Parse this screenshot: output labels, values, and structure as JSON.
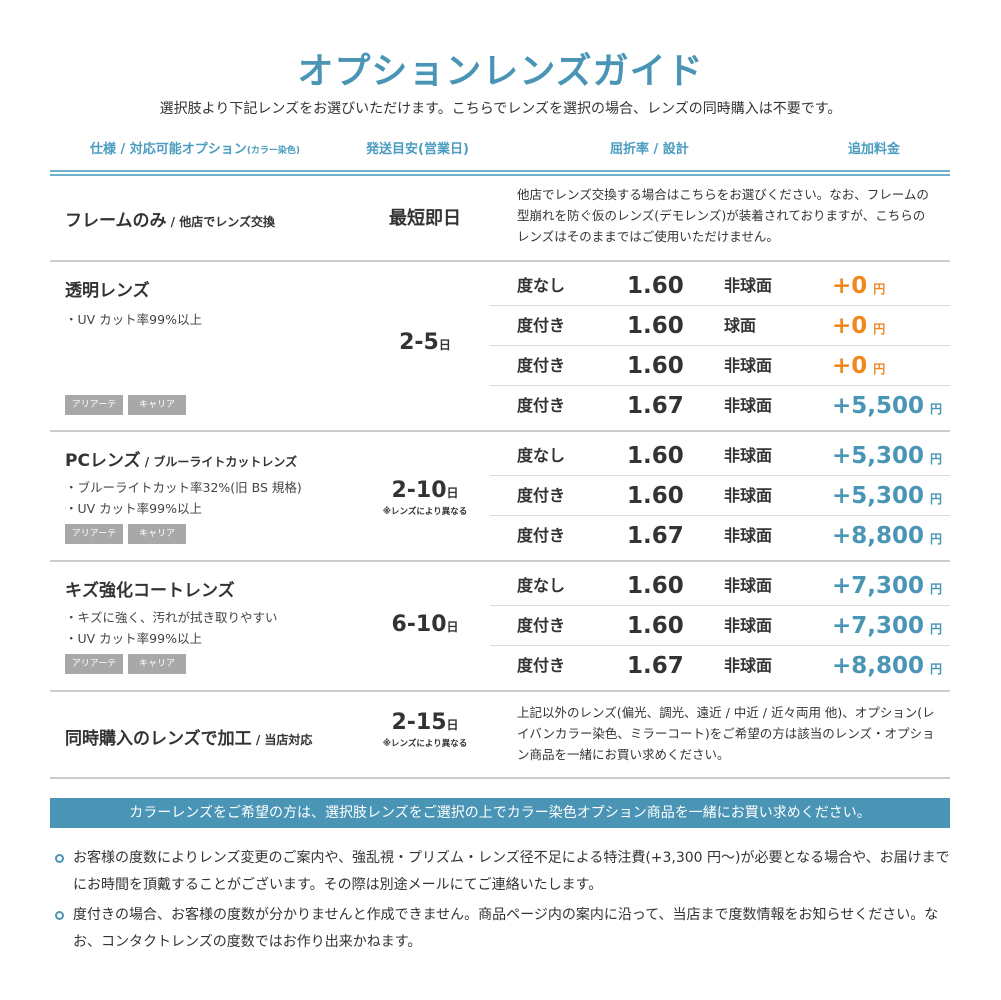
{
  "title": "オプションレンズガイド",
  "subtitle": "選択肢より下記レンズをお選びいただけます。こちらでレンズを選択の場合、レンズの同時購入は不要です。",
  "headers": {
    "spec": "仕様 / 対応可能オプション",
    "spec_small": "(カラー染色)",
    "ship": "発送目安(営業日)",
    "index": "屈折率 / 設計",
    "price": "追加料金"
  },
  "colors": {
    "accent": "#4a95b5",
    "zero_price": "#f0881e",
    "price": "#4a95b5",
    "tag": "#a8a8a8"
  },
  "frame": {
    "name": "フレームのみ",
    "sub": " / 他店でレンズ交換",
    "ship": "最短即日",
    "desc": "他店でレンズ交換する場合はこちらをお選びください。なお、フレームの型崩れを防ぐ仮のレンズ(デモレンズ)が装着されておりますが、こちらのレンズはそのままではご使用いただけません。"
  },
  "sections": [
    {
      "name": "透明レンズ",
      "sub": "",
      "bullets": [
        "・UV カット率99%以上"
      ],
      "tags": [
        "アリアーテ",
        "キャリア"
      ],
      "ship": "2-5",
      "ship_unit": "日",
      "ship_note": "",
      "rows": [
        {
          "label": "度なし",
          "index": "1.60",
          "design": "非球面",
          "price": "+0",
          "unit": "円",
          "zero": true
        },
        {
          "label": "度付き",
          "index": "1.60",
          "design": "球面",
          "price": "+0",
          "unit": "円",
          "zero": true
        },
        {
          "label": "度付き",
          "index": "1.60",
          "design": "非球面",
          "price": "+0",
          "unit": "円",
          "zero": true
        },
        {
          "label": "度付き",
          "index": "1.67",
          "design": "非球面",
          "price": "+5,500",
          "unit": "円",
          "zero": false
        }
      ]
    },
    {
      "name": "PCレンズ",
      "sub": " / ブルーライトカットレンズ",
      "bullets": [
        "・ブルーライトカット率32%(旧 BS 規格)",
        "・UV カット率99%以上"
      ],
      "tags": [
        "アリアーテ",
        "キャリア"
      ],
      "ship": "2-10",
      "ship_unit": "日",
      "ship_note": "※レンズにより異なる",
      "rows": [
        {
          "label": "度なし",
          "index": "1.60",
          "design": "非球面",
          "price": "+5,300",
          "unit": "円"
        },
        {
          "label": "度付き",
          "index": "1.60",
          "design": "非球面",
          "price": "+5,300",
          "unit": "円"
        },
        {
          "label": "度付き",
          "index": "1.67",
          "design": "非球面",
          "price": "+8,800",
          "unit": "円"
        }
      ]
    },
    {
      "name": "キズ強化コートレンズ",
      "sub": "",
      "bullets": [
        "・キズに強く、汚れが拭き取りやすい",
        "・UV カット率99%以上"
      ],
      "tags": [
        "アリアーテ",
        "キャリア"
      ],
      "ship": "6-10",
      "ship_unit": "日",
      "ship_note": "",
      "rows": [
        {
          "label": "度なし",
          "index": "1.60",
          "design": "非球面",
          "price": "+7,300",
          "unit": "円"
        },
        {
          "label": "度付き",
          "index": "1.60",
          "design": "非球面",
          "price": "+7,300",
          "unit": "円"
        },
        {
          "label": "度付き",
          "index": "1.67",
          "design": "非球面",
          "price": "+8,800",
          "unit": "円"
        }
      ]
    }
  ],
  "processing": {
    "name": "同時購入のレンズで加工",
    "sub": " / 当店対応",
    "ship": "2-15",
    "ship_unit": "日",
    "ship_note": "※レンズにより異なる",
    "desc": "上記以外のレンズ(偏光、調光、遠近 / 中近 / 近々両用 他)、オプション(レイバンカラー染色、ミラーコート)をご希望の方は該当のレンズ・オプション商品を一緒にお買い求めください。"
  },
  "banner": "カラーレンズをご希望の方は、選択肢レンズをご選択の上でカラー染色オプション商品を一緒にお買い求めください。",
  "notes": [
    "お客様の度数によりレンズ変更のご案内や、強乱視・プリズム・レンズ径不足による特注費(+3,300 円〜)が必要となる場合や、お届けまでにお時間を頂戴することがございます。その際は別途メールにてご連絡いたします。",
    "度付きの場合、お客様の度数が分かりませんと作成できません。商品ページ内の案内に沿って、当店まで度数情報をお知らせください。なお、コンタクトレンズの度数ではお作り出来かねます。"
  ]
}
